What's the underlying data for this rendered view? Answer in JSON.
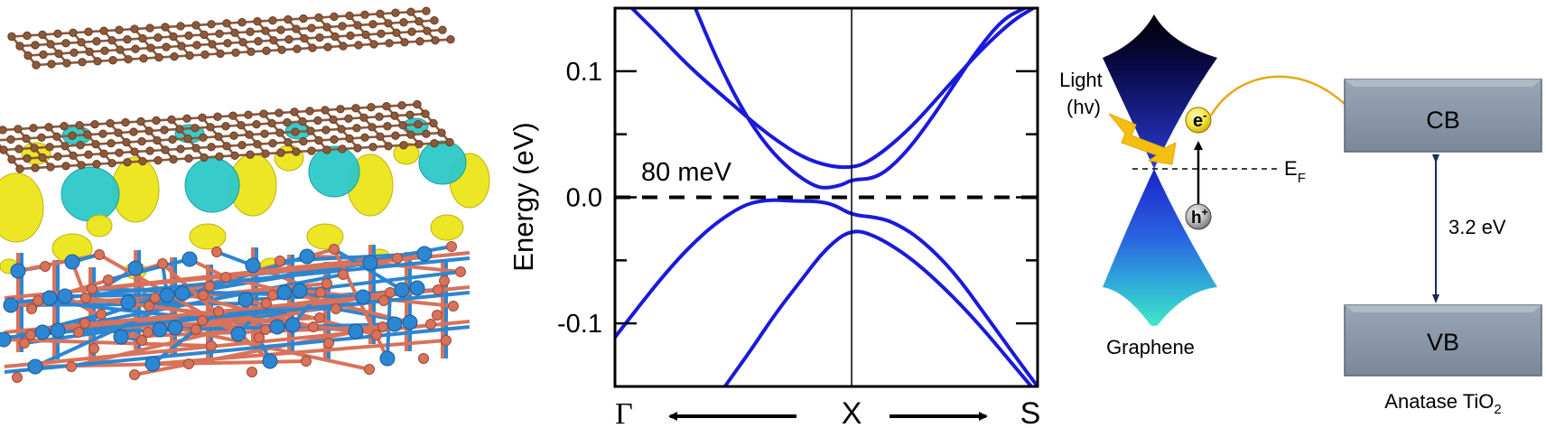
{
  "panel_b": {
    "ylabel": "Energy (eV)",
    "gap_annotation": "80 meV",
    "k_labels": [
      "Γ",
      "X",
      "S"
    ]
  },
  "panel_c": {
    "light_label_line1": "Light",
    "light_label_line2": "(hv)",
    "electron_label": "e",
    "electron_sup": "-",
    "hole_label": "h",
    "hole_sup": "+",
    "fermi_label": "E",
    "fermi_sub": "F",
    "graphene_label": "Graphene",
    "cb_label": "CB",
    "vb_label": "VB",
    "gap_label": "3.2 eV",
    "tio2_label": "Anatase TiO",
    "tio2_sub": "2"
  },
  "chart_data": {
    "type": "line",
    "xlabel": "",
    "ylabel": "Energy (eV)",
    "ylim": [
      -0.15,
      0.15
    ],
    "yticks": [
      0.1,
      0.0,
      -0.1
    ],
    "ytick_labels": [
      "0.1",
      "0.0",
      "-0.1"
    ],
    "x_ticks": [
      "Γ",
      "X",
      "S"
    ],
    "xlim": [
      0,
      1
    ],
    "x_X": 0.56,
    "fermi_level": 0.0,
    "colors": {
      "bands": "#1a1adb",
      "fermi": "#000000"
    },
    "series": [
      {
        "x": [
          0.04,
          0.1,
          0.18,
          0.27,
          0.36,
          0.46,
          0.56,
          0.62,
          0.7,
          0.78,
          0.86,
          0.94,
          0.99
        ],
        "y": [
          0.15,
          0.13,
          0.102,
          0.076,
          0.05,
          0.028,
          0.022,
          0.032,
          0.055,
          0.085,
          0.115,
          0.14,
          0.15
        ]
      },
      {
        "x": [
          0.19,
          0.24,
          0.3,
          0.36,
          0.42,
          0.47,
          0.5,
          0.54,
          0.56,
          0.62,
          0.68,
          0.74,
          0.8,
          0.86,
          0.92,
          0.97
        ],
        "y": [
          0.15,
          0.11,
          0.07,
          0.04,
          0.02,
          0.009,
          0.007,
          0.01,
          0.014,
          0.015,
          0.032,
          0.058,
          0.088,
          0.118,
          0.142,
          0.15
        ]
      },
      {
        "x": [
          0.0,
          0.06,
          0.12,
          0.18,
          0.24,
          0.3,
          0.34,
          0.38,
          0.42,
          0.48,
          0.52,
          0.56,
          0.62,
          0.66,
          0.72,
          0.8,
          0.88,
          0.96,
          1.0
        ],
        "y": [
          -0.111,
          -0.085,
          -0.06,
          -0.038,
          -0.02,
          -0.007,
          -0.003,
          -0.002,
          -0.003,
          -0.003,
          -0.006,
          -0.014,
          -0.016,
          -0.02,
          -0.032,
          -0.058,
          -0.095,
          -0.132,
          -0.15
        ]
      },
      {
        "x": [
          0.26,
          0.32,
          0.38,
          0.44,
          0.5,
          0.56,
          0.62,
          0.7,
          0.78,
          0.86,
          0.94,
          0.985
        ],
        "y": [
          -0.15,
          -0.122,
          -0.092,
          -0.066,
          -0.04,
          -0.025,
          -0.031,
          -0.048,
          -0.072,
          -0.1,
          -0.132,
          -0.15
        ]
      }
    ]
  }
}
